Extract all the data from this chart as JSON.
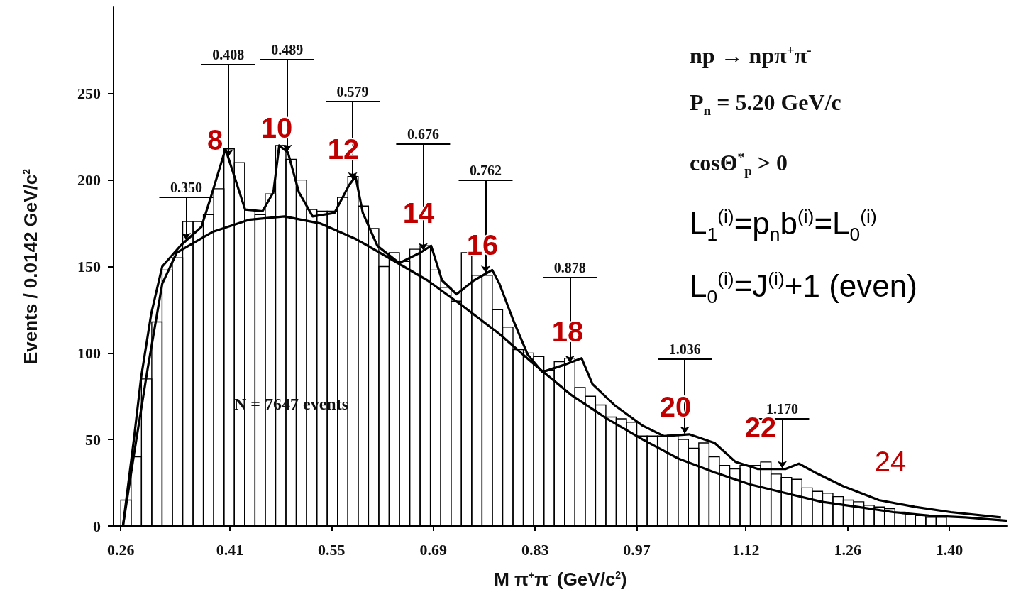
{
  "chart_data": {
    "type": "histogram",
    "xlabel": "M π$^{+}$π$^{-}$ (GeV/c$^{2}$)",
    "ylabel": "Events / 0.0142 GeV/c$^{2}$",
    "xlim": [
      0.25,
      1.48
    ],
    "xticks": [
      0.26,
      0.41,
      0.55,
      0.69,
      0.83,
      0.97,
      1.12,
      1.26,
      {
        "value": 1.4,
        "label": "1.40"
      }
    ],
    "ylim": [
      0,
      300
    ],
    "yticks": [
      0,
      50,
      100,
      150,
      200,
      250
    ],
    "grid": false,
    "series": [
      {
        "color": "#000000",
        "bins": [
          0.26,
          0.2742,
          0.2884,
          0.3026,
          0.3168,
          0.331,
          0.3452,
          0.3594,
          0.3736,
          0.3878,
          0.402,
          0.4162,
          0.4304,
          0.4446,
          0.4588,
          0.473,
          0.4872,
          0.5014,
          0.5156,
          0.5298,
          0.544,
          0.5582,
          0.5724,
          0.5866,
          0.6008,
          0.615,
          0.6292,
          0.6434,
          0.6576,
          0.6718,
          0.686,
          0.7002,
          0.7144,
          0.7286,
          0.7428,
          0.757,
          0.7712,
          0.7854,
          0.7996,
          0.8138,
          0.828,
          0.8422,
          0.8564,
          0.8706,
          0.8848,
          0.899,
          0.9132,
          0.9274,
          0.9416,
          0.9558,
          0.97,
          0.9842,
          0.9984,
          1.0126,
          1.0268,
          1.041,
          1.0552,
          1.0694,
          1.0836,
          1.0978,
          1.112,
          1.1262,
          1.1404,
          1.1546,
          1.1688,
          1.183,
          1.1972,
          1.2114,
          1.2256,
          1.2398,
          1.254,
          1.2682,
          1.2824,
          1.2966,
          1.3108,
          1.325,
          1.3392,
          1.3534,
          1.3676,
          1.3818,
          1.396
        ],
        "values": [
          15,
          40,
          85,
          118,
          148,
          155,
          176,
          176,
          180,
          195,
          218,
          210,
          183,
          180,
          192,
          220,
          212,
          200,
          183,
          182,
          182,
          190,
          202,
          185,
          172,
          150,
          158,
          153,
          160,
          162,
          148,
          138,
          130,
          158,
          145,
          145,
          125,
          115,
          102,
          100,
          98,
          90,
          95,
          97,
          80,
          75,
          70,
          63,
          62,
          60,
          52,
          52,
          52,
          53,
          50,
          45,
          48,
          40,
          35,
          33,
          35,
          35,
          37,
          30,
          28,
          27,
          22,
          20,
          19,
          17,
          15,
          14,
          12,
          11,
          10,
          8,
          7,
          6,
          5,
          5
        ]
      },
      {
        "type": "line",
        "color": "#000000",
        "x": [
          0.263,
          0.278,
          0.288,
          0.302,
          0.317,
          0.342,
          0.371,
          0.386,
          0.404,
          0.431,
          0.455,
          0.47,
          0.478,
          0.49,
          0.505,
          0.524,
          0.554,
          0.574,
          0.583,
          0.593,
          0.613,
          0.643,
          0.672,
          0.687,
          0.702,
          0.722,
          0.746,
          0.771,
          0.781,
          0.8,
          0.82,
          0.84,
          0.869,
          0.894,
          0.909,
          0.939,
          0.978,
          1.007,
          1.042,
          1.077,
          1.106,
          1.136,
          1.175,
          1.193,
          1.215,
          1.254,
          1.303,
          1.353,
          1.402,
          1.471
        ],
        "values": [
          0,
          50,
          86,
          123,
          150,
          162,
          173,
          193,
          218,
          183,
          182,
          193,
          220,
          216,
          193,
          179,
          181,
          197,
          202,
          181,
          162,
          152,
          158,
          162,
          142,
          134,
          142,
          148,
          140,
          119,
          99,
          89,
          93,
          97,
          82,
          70,
          58,
          52,
          53,
          48,
          37,
          33,
          33,
          36,
          31,
          23,
          15,
          11,
          8,
          5
        ]
      },
      {
        "type": "line",
        "color": "#000000",
        "x": [
          0.263,
          0.278,
          0.297,
          0.317,
          0.337,
          0.386,
          0.436,
          0.485,
          0.534,
          0.583,
          0.633,
          0.682,
          0.731,
          0.781,
          0.83,
          0.879,
          0.929,
          0.978,
          1.027,
          1.077,
          1.126,
          1.175,
          1.224,
          1.274,
          1.323,
          1.372,
          1.422,
          1.48
        ],
        "values": [
          0,
          41,
          91,
          140,
          158,
          170,
          177,
          179,
          175,
          166,
          154,
          142,
          127,
          111,
          93,
          76,
          62,
          50,
          39,
          31,
          24,
          19,
          14,
          11,
          8,
          6,
          5,
          3
        ]
      }
    ],
    "annotations": [
      {
        "text": "0.350",
        "x": 0.35,
        "y": 165
      },
      {
        "text": "0.408",
        "x": 0.408,
        "y": 213
      },
      {
        "text": "0.489",
        "x": 0.489,
        "y": 216
      },
      {
        "text": "0.579",
        "x": 0.579,
        "y": 200
      },
      {
        "text": "0.676",
        "x": 0.676,
        "y": 159
      },
      {
        "text": "0.762",
        "x": 0.762,
        "y": 146
      },
      {
        "text": "0.878",
        "x": 0.878,
        "y": 94
      },
      {
        "text": "1.036",
        "x": 1.036,
        "y": 53
      },
      {
        "text": "1.170",
        "x": 1.17,
        "y": 33
      },
      "8",
      "10",
      "12",
      "14",
      "16",
      "18",
      "20",
      "22",
      "24",
      "np → npπ$^{+}$π$^{-}$",
      "P$_{n}$ = 5.20 GeV/c",
      "cosΘ$^{*}$$_{p}$ > 0",
      "L$_{1}$$^{(i)}$=p$_{n}$b$^{(i)}$=L$_{0}$$^{(i)}$",
      "L$_{0}$$^{(i)}$=J$^{(i)}$+1  (even)",
      "N = 7647 events"
    ]
  }
}
